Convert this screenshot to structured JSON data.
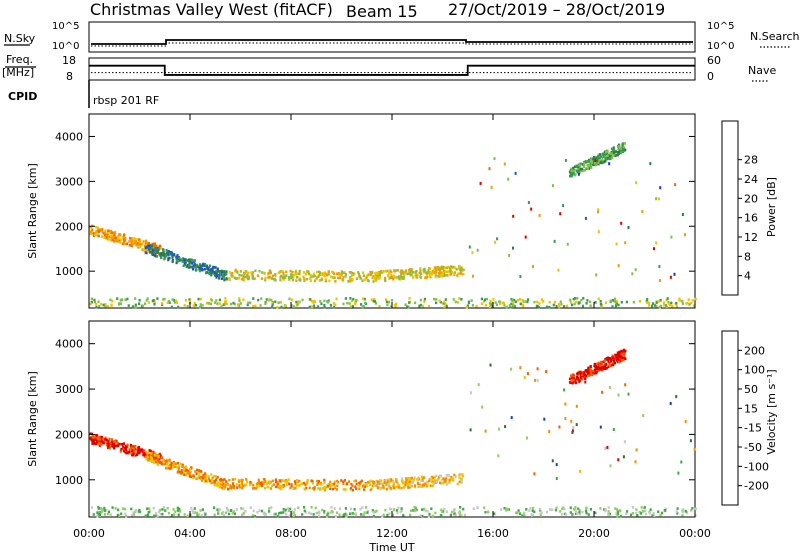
{
  "header": {
    "station": "Christmas Valley West (fitACF)",
    "beam": "Beam 15",
    "dates": "27/Oct/2019 – 28/Oct/2019"
  },
  "labels": {
    "nsky": "N.Sky",
    "nsearch": "N.Search",
    "freq": "Freq.",
    "freq_unit": "[MHz]",
    "nave": "Nave",
    "cpid": "CPID",
    "cpid_value": "rbsp 201 RF",
    "slant_range": "Slant Range [km]",
    "time_axis": "Time UT"
  },
  "colors": {
    "power_scale": [
      "#1f2fe0",
      "#1f55c8",
      "#2c7d4a",
      "#3a9a52",
      "#7fc24a",
      "#f2c200",
      "#f59a00",
      "#f06a00",
      "#e00000"
    ],
    "velocity_scale": [
      "#1f3fb8",
      "#2f6f2f",
      "#3fa84a",
      "#90d060",
      "#c8c8c8",
      "#f2c200",
      "#f09000",
      "#f06000",
      "#e00000"
    ]
  },
  "chart_data": [
    {
      "type": "line",
      "name": "noise",
      "x_ticks": [
        "",
        ""
      ],
      "left_ticks": [
        "10^5",
        "10^0"
      ],
      "right_ticks": [
        "10^5",
        "10^0"
      ],
      "right_label": "N.Search",
      "left_label": "N.Sky"
    },
    {
      "type": "line",
      "name": "freq-nave",
      "left_ticks": [
        "18",
        "8"
      ],
      "right_ticks": [
        "60",
        "0"
      ],
      "left_label": "Freq. [MHz]",
      "right_label": "Nave",
      "freq_steps": [
        {
          "t_start": 0,
          "t_end": 3.0,
          "value": 14.5
        },
        {
          "t_start": 3.0,
          "t_end": 15.0,
          "value": 10.3
        },
        {
          "t_start": 15.0,
          "t_end": 24.0,
          "value": 14.5
        }
      ],
      "nave_value": 20
    },
    {
      "type": "heatmap",
      "name": "power",
      "ylabel": "Slant Range [km]",
      "x_range": [
        0,
        24
      ],
      "y_range": [
        180,
        4500
      ],
      "y_ticks": [
        1000,
        2000,
        3000,
        4000
      ],
      "x_tick_labels": [
        "00:00",
        "04:00",
        "08:00",
        "12:00",
        "16:00",
        "20:00",
        "00:00"
      ],
      "colorbar_label": "Power [dB]",
      "colorbar_ticks": [
        "4",
        "8",
        "12",
        "16",
        "20",
        "24",
        "28"
      ],
      "features": [
        {
          "t0": 0.0,
          "t1": 2.8,
          "r0": 1950,
          "r1": 1500,
          "level": 6
        },
        {
          "t0": 2.2,
          "t1": 5.5,
          "r0": 1550,
          "r1": 900,
          "level": 2
        },
        {
          "t0": 5.5,
          "t1": 11.0,
          "r0": 950,
          "r1": 900,
          "level": 5
        },
        {
          "t0": 11.0,
          "t1": 14.8,
          "r0": 900,
          "r1": 1050,
          "level": 5
        },
        {
          "t0": 19.0,
          "t1": 21.2,
          "r0": 3200,
          "r1": 3800,
          "level": 3
        },
        {
          "t0": 0.0,
          "t1": 24.0,
          "r0": 300,
          "r1": 300,
          "level": 4
        }
      ]
    },
    {
      "type": "heatmap",
      "name": "velocity",
      "ylabel": "Slant Range [km]",
      "xlabel": "Time UT",
      "x_range": [
        0,
        24
      ],
      "y_range": [
        180,
        4500
      ],
      "y_ticks": [
        1000,
        2000,
        3000,
        4000
      ],
      "x_tick_labels": [
        "00:00",
        "04:00",
        "08:00",
        "12:00",
        "16:00",
        "20:00",
        "00:00"
      ],
      "colorbar_label": "Velocity [m s⁻¹]",
      "colorbar_ticks": [
        "200",
        "100",
        "50",
        "15",
        "-15",
        "-50",
        "-100",
        "-200"
      ],
      "features": [
        {
          "t0": 0.0,
          "t1": 2.8,
          "r0": 1950,
          "r1": 1500,
          "level": 8
        },
        {
          "t0": 2.2,
          "t1": 5.5,
          "r0": 1550,
          "r1": 900,
          "level": 6
        },
        {
          "t0": 5.5,
          "t1": 11.0,
          "r0": 950,
          "r1": 900,
          "level": 6
        },
        {
          "t0": 11.0,
          "t1": 14.8,
          "r0": 900,
          "r1": 1050,
          "level": 5
        },
        {
          "t0": 19.0,
          "t1": 21.2,
          "r0": 3200,
          "r1": 3800,
          "level": 8
        },
        {
          "t0": 0.0,
          "t1": 24.0,
          "r0": 300,
          "r1": 300,
          "level": 3
        }
      ]
    }
  ]
}
